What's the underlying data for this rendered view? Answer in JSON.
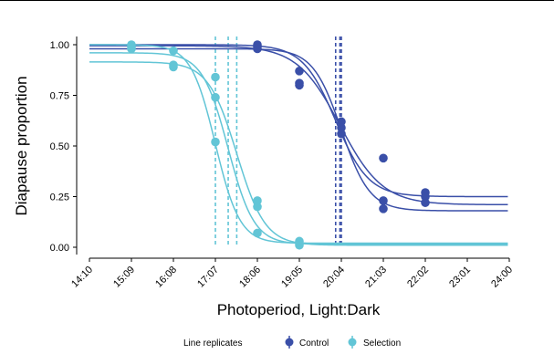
{
  "chart_data": {
    "type": "scatter",
    "xlabel": "Photoperiod, Light:Dark",
    "ylabel": "Diapause proportion",
    "x_ticks": [
      "14:10",
      "15:09",
      "16:08",
      "17:07",
      "18:06",
      "19:05",
      "20:04",
      "21:03",
      "22:02",
      "23:01",
      "24:00"
    ],
    "xlim": [
      "14:10",
      "24:00"
    ],
    "y_ticks": [
      "0.00",
      "0.25",
      "0.50",
      "0.75",
      "1.00"
    ],
    "ylim": [
      0,
      1
    ],
    "grid": false,
    "legend": {
      "title": "Line replicates",
      "placement": "bottom",
      "entries": [
        "Control",
        "Selection"
      ]
    },
    "colors": {
      "Control": "#3a4fa8",
      "Selection": "#62c5d6"
    },
    "series": [
      {
        "name": "Control",
        "points": [
          {
            "x": "18:06",
            "y": 0.99
          },
          {
            "x": "18:06",
            "y": 0.98
          },
          {
            "x": "18:06",
            "y": 1.0
          },
          {
            "x": "19:05",
            "y": 0.87
          },
          {
            "x": "19:05",
            "y": 0.81
          },
          {
            "x": "19:05",
            "y": 0.8
          },
          {
            "x": "20:04",
            "y": 0.62
          },
          {
            "x": "20:04",
            "y": 0.59
          },
          {
            "x": "20:04",
            "y": 0.56
          },
          {
            "x": "21:03",
            "y": 0.44
          },
          {
            "x": "21:03",
            "y": 0.23
          },
          {
            "x": "21:03",
            "y": 0.19
          },
          {
            "x": "22:02",
            "y": 0.27
          },
          {
            "x": "22:02",
            "y": 0.25
          },
          {
            "x": "22:02",
            "y": 0.22
          }
        ],
        "fits": [
          {
            "upper": 1.0,
            "lower": 0.25,
            "midpoint": "19:56",
            "slope": 2.6
          },
          {
            "upper": 0.995,
            "lower": 0.21,
            "midpoint": "20:02",
            "slope": 2.0
          },
          {
            "upper": 0.98,
            "lower": 0.18,
            "midpoint": "20:04",
            "slope": 3.0
          }
        ],
        "midpoint_lines": [
          "19:56",
          "20:02",
          "20:04"
        ]
      },
      {
        "name": "Selection",
        "points": [
          {
            "x": "15:09",
            "y": 1.0
          },
          {
            "x": "15:09",
            "y": 0.99
          },
          {
            "x": "15:09",
            "y": 0.98
          },
          {
            "x": "16:08",
            "y": 0.97
          },
          {
            "x": "16:08",
            "y": 0.9
          },
          {
            "x": "16:08",
            "y": 0.89
          },
          {
            "x": "17:07",
            "y": 0.84
          },
          {
            "x": "17:07",
            "y": 0.74
          },
          {
            "x": "17:07",
            "y": 0.52
          },
          {
            "x": "18:06",
            "y": 0.23
          },
          {
            "x": "18:06",
            "y": 0.2
          },
          {
            "x": "18:06",
            "y": 0.07
          },
          {
            "x": "19:05",
            "y": 0.03
          },
          {
            "x": "19:05",
            "y": 0.02
          },
          {
            "x": "19:05",
            "y": 0.01
          }
        ],
        "fits": [
          {
            "upper": 1.0,
            "lower": 0.02,
            "midpoint": "17:07",
            "slope": 3.5
          },
          {
            "upper": 0.96,
            "lower": 0.015,
            "midpoint": "17:25",
            "slope": 3.3
          },
          {
            "upper": 0.915,
            "lower": 0.01,
            "midpoint": "17:37",
            "slope": 3.0
          }
        ],
        "midpoint_lines": [
          "17:07",
          "17:25",
          "17:37"
        ]
      }
    ]
  }
}
